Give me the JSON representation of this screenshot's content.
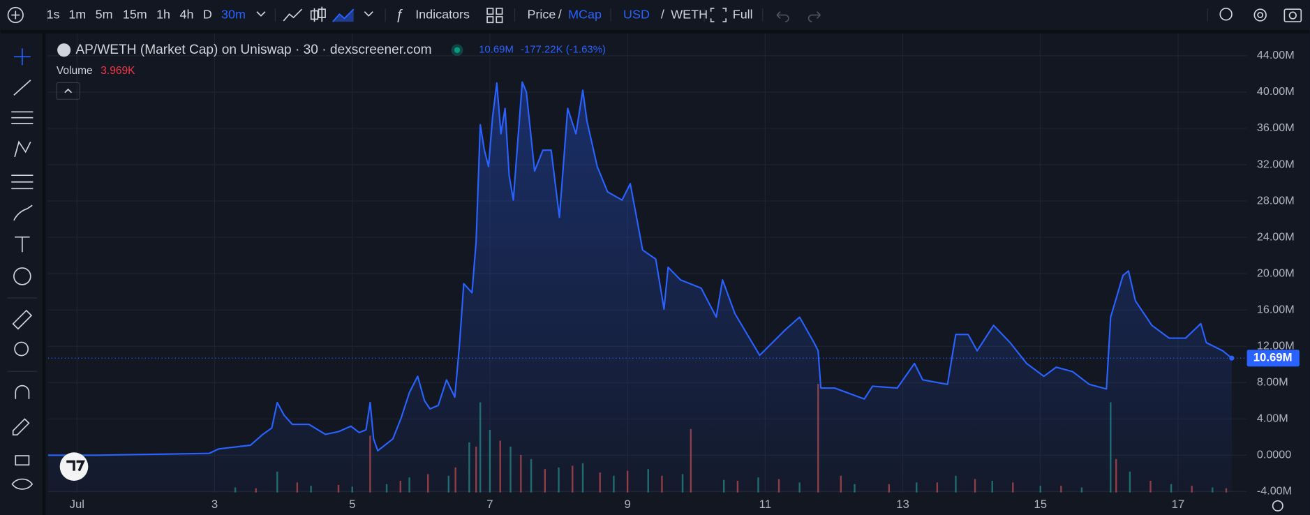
{
  "toolbar": {
    "intervals": [
      "1s",
      "1m",
      "5m",
      "15m",
      "1h",
      "4h",
      "D",
      "30m"
    ],
    "active_interval_index": 7,
    "indicators": "Indicators",
    "price": "Price",
    "price_sep": "/",
    "mcap": "MCap",
    "usd": "USD",
    "currency_sep": "/",
    "weth": "WETH",
    "full": "Full"
  },
  "legend": {
    "title": "AP/WETH (Market Cap) on Uniswap · 30 · dexscreener.com",
    "value": "10.69M",
    "change": "-177.22K (-1.63%)",
    "volume_label": "Volume",
    "volume_value": "3.969K"
  },
  "chart_data": {
    "type": "area",
    "series": [
      {
        "color": "#2962ff",
        "x": [
          0.58,
          1.28,
          2.92,
          3.06,
          3.52,
          3.7,
          3.83,
          3.91,
          4.01,
          4.13,
          4.37,
          4.61,
          4.8,
          4.98,
          5.1,
          5.2,
          5.26,
          5.31,
          5.37,
          5.59,
          5.71,
          5.83,
          5.95,
          6.05,
          6.13,
          6.25,
          6.37,
          6.49,
          6.56,
          6.62,
          6.74,
          6.8,
          6.86,
          6.92,
          6.98,
          7.04,
          7.1,
          7.16,
          7.22,
          7.28,
          7.34,
          7.47,
          7.53,
          7.65,
          7.77,
          7.89,
          8.01,
          8.13,
          8.25,
          8.35,
          8.41,
          8.56,
          8.71,
          8.92,
          9.04,
          9.22,
          9.41,
          9.53,
          9.59,
          9.77,
          10.07,
          10.29,
          10.38,
          10.56,
          10.92,
          11.29,
          11.5,
          11.71,
          11.77,
          11.81,
          12.01,
          12.44,
          12.56,
          12.92,
          13.17,
          13.29,
          13.65,
          13.77,
          13.95,
          14.08,
          14.32,
          14.56,
          14.8,
          15.05,
          15.23,
          15.47,
          15.71,
          15.96,
          16.02,
          16.2,
          16.28,
          16.38,
          16.62,
          16.87,
          17.11,
          17.33,
          17.41,
          17.65,
          17.78
        ],
        "values": [
          0,
          0,
          0.2,
          0.7,
          1.1,
          2.3,
          3.0,
          5.8,
          4.4,
          3.4,
          3.4,
          2.3,
          2.6,
          3.2,
          2.5,
          2.8,
          5.8,
          1.8,
          0.5,
          1.8,
          4.1,
          6.9,
          8.7,
          6.0,
          5.1,
          5.5,
          8.3,
          6.4,
          12.4,
          18.9,
          17.9,
          23.5,
          36.4,
          33.6,
          31.8,
          37.3,
          41.0,
          35.4,
          38.2,
          30.8,
          28.1,
          41.1,
          40.0,
          31.3,
          33.6,
          33.6,
          26.2,
          38.2,
          35.4,
          40.2,
          36.8,
          31.8,
          29.0,
          28.1,
          29.9,
          22.6,
          21.6,
          16.1,
          20.7,
          19.3,
          18.4,
          15.2,
          19.3,
          15.6,
          11.0,
          13.8,
          15.2,
          12.4,
          11.5,
          7.4,
          7.4,
          6.2,
          7.6,
          7.4,
          10.1,
          8.3,
          7.8,
          13.3,
          13.3,
          11.5,
          14.3,
          12.4,
          10.1,
          8.7,
          9.7,
          9.2,
          7.8,
          7.3,
          15.2,
          19.8,
          20.3,
          17.0,
          14.3,
          12.9,
          12.9,
          14.5,
          12.4,
          11.5,
          10.69
        ]
      }
    ],
    "xlim": [
      0.58,
      18
    ],
    "xticks": [
      {
        "value": 1,
        "label": "Jul"
      },
      3,
      5,
      7,
      9,
      11,
      13,
      15,
      17
    ],
    "ylim": [
      -4.1,
      46
    ],
    "yticks": [
      {
        "value": 44,
        "label": "44.00M"
      },
      {
        "value": 40,
        "label": "40.00M"
      },
      {
        "value": 36,
        "label": "36.00M"
      },
      {
        "value": 32,
        "label": "32.00M"
      },
      {
        "value": 28,
        "label": "28.00M"
      },
      {
        "value": 24,
        "label": "24.00M"
      },
      {
        "value": 20,
        "label": "20.00M"
      },
      {
        "value": 16,
        "label": "16.00M"
      },
      {
        "value": 12,
        "label": "12.00M"
      },
      {
        "value": 8,
        "label": "8.00M"
      },
      {
        "value": 4,
        "label": "4.00M"
      },
      {
        "value": 0,
        "label": "0.0000"
      },
      {
        "value": -4,
        "label": "-4.00M"
      }
    ],
    "grid": true,
    "price_tag": {
      "value": 10.69,
      "label": "10.69M",
      "color": "#2962ff"
    },
    "volume": {
      "vlim": [
        0,
        160
      ],
      "series": [
        {
          "color": "#26a69a",
          "x": [
            3.3,
            3.91,
            4.4,
            5.0,
            5.5,
            5.83,
            6.4,
            6.7,
            6.86,
            7.0,
            7.3,
            7.6,
            8.0,
            8.35,
            8.8,
            9.3,
            9.8,
            10.4,
            10.9,
            11.5,
            12.3,
            13.2,
            13.77,
            14.3,
            15.0,
            15.6,
            16.02,
            16.3,
            16.9,
            17.5
          ],
          "values": [
            6,
            25,
            8,
            7,
            10,
            18,
            20,
            60,
            108,
            75,
            55,
            40,
            30,
            35,
            20,
            28,
            22,
            15,
            18,
            12,
            10,
            12,
            20,
            14,
            8,
            6,
            108,
            25,
            10,
            6
          ]
        },
        {
          "color": "#ef5350",
          "x": [
            3.6,
            4.2,
            4.8,
            5.26,
            5.7,
            6.1,
            6.5,
            6.8,
            7.15,
            7.45,
            7.8,
            8.2,
            8.6,
            9.0,
            9.5,
            9.92,
            10.6,
            11.2,
            11.77,
            12.1,
            12.8,
            13.5,
            14.05,
            14.6,
            15.3,
            16.1,
            16.6,
            17.2,
            17.7
          ],
          "values": [
            5,
            12,
            9,
            68,
            14,
            22,
            30,
            55,
            62,
            45,
            28,
            32,
            24,
            26,
            20,
            76,
            14,
            16,
            130,
            20,
            10,
            12,
            16,
            12,
            8,
            40,
            14,
            8,
            5
          ]
        }
      ]
    }
  }
}
